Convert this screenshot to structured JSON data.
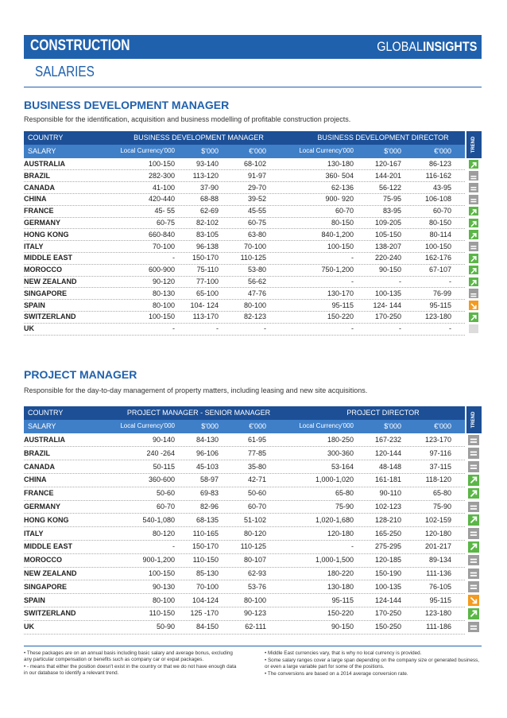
{
  "header": {
    "title": "CONSTRUCTION",
    "brand_light": "GLOBAL",
    "brand_bold": "INSIGHTS",
    "subtitle": "SALARIES"
  },
  "sections": [
    {
      "title": "BUSINESS DEVELOPMENT MANAGER",
      "description": "Responsible for the identification, acquisition and business modelling of profitable construction projects.",
      "country_label": "COUNTRY",
      "group1": "BUSINESS DEVELOPMENT MANAGER",
      "group2": "BUSINESS DEVELOPMENT DIRECTOR",
      "salary_label": "SALARY",
      "trend_label": "TREND",
      "currencies": [
        "Local Currency'000",
        "$'000",
        "€'000",
        "Local Currency'000",
        "$'000",
        "€'000"
      ],
      "rows": [
        {
          "country": "AUSTRALIA",
          "cells": [
            "100-150",
            "93-140",
            "68-102",
            "130-180",
            "120-167",
            "86-123"
          ],
          "trend": "up"
        },
        {
          "country": "BRAZIL",
          "cells": [
            "282-300",
            "113-120",
            "91-97",
            "360- 504",
            "144-201",
            "116-162"
          ],
          "trend": "flat"
        },
        {
          "country": "CANADA",
          "cells": [
            "41-100",
            "37-90",
            "29-70",
            "62-136",
            "56-122",
            "43-95"
          ],
          "trend": "flat"
        },
        {
          "country": "CHINA",
          "cells": [
            "420-440",
            "68-88",
            "39-52",
            "900- 920",
            "75-95",
            "106-108"
          ],
          "trend": "flat"
        },
        {
          "country": "FRANCE",
          "cells": [
            "45- 55",
            "62-69",
            "45-55",
            "60-70",
            "83-95",
            "60-70"
          ],
          "trend": "up"
        },
        {
          "country": "GERMANY",
          "cells": [
            "60-75",
            "82-102",
            "60-75",
            "80-150",
            "109-205",
            "80-150"
          ],
          "trend": "up"
        },
        {
          "country": "HONG KONG",
          "cells": [
            "660-840",
            "83-105",
            "63-80",
            "840-1,200",
            "105-150",
            "80-114"
          ],
          "trend": "up"
        },
        {
          "country": "ITALY",
          "cells": [
            "70-100",
            "96-138",
            "70-100",
            "100-150",
            "138-207",
            "100-150"
          ],
          "trend": "flat"
        },
        {
          "country": "MIDDLE EAST",
          "cells": [
            "-",
            "150-170",
            "110-125",
            "-",
            "220-240",
            "162-176"
          ],
          "trend": "up"
        },
        {
          "country": "MOROCCO",
          "cells": [
            "600-900",
            "75-110",
            "53-80",
            "750-1,200",
            "90-150",
            "67-107"
          ],
          "trend": "up"
        },
        {
          "country": "NEW ZEALAND",
          "cells": [
            "90-120",
            "77-100",
            "56-62",
            "-",
            "-",
            "-"
          ],
          "trend": "up"
        },
        {
          "country": "SINGAPORE",
          "cells": [
            "80-130",
            "65-100",
            "47-76",
            "130-170",
            "100-135",
            "76-99"
          ],
          "trend": "flat"
        },
        {
          "country": "SPAIN",
          "cells": [
            "80-100",
            "104- 124",
            "80-100",
            "95-115",
            "124- 144",
            "95-115"
          ],
          "trend": "down"
        },
        {
          "country": "SWITZERLAND",
          "cells": [
            "100-150",
            "113-170",
            "82-123",
            "150-220",
            "170-250",
            "123-180"
          ],
          "trend": "up"
        },
        {
          "country": "UK",
          "cells": [
            "-",
            "-",
            "-",
            "-",
            "-",
            "-"
          ],
          "trend": "none"
        }
      ]
    },
    {
      "title": "PROJECT MANAGER",
      "description": "Responsible for the day-to-day management of property matters, including leasing and new site acquisitions.",
      "country_label": "COUNTRY",
      "group1": "PROJECT MANAGER - SENIOR MANAGER",
      "group2": "PROJECT DIRECTOR",
      "salary_label": "SALARY",
      "trend_label": "TREND",
      "currencies": [
        "Local Currency'000",
        "$'000",
        "€'000",
        "Local Currency'000",
        "$'000",
        "€'000"
      ],
      "rows": [
        {
          "country": "AUSTRALIA",
          "cells": [
            "90-140",
            "84-130",
            "61-95",
            "180-250",
            "167-232",
            "123-170"
          ],
          "trend": "flat"
        },
        {
          "country": "BRAZIL",
          "cells": [
            "240 -264",
            "96-106",
            "77-85",
            "300-360",
            "120-144",
            "97-116"
          ],
          "trend": "flat"
        },
        {
          "country": "CANADA",
          "cells": [
            "50-115",
            "45-103",
            "35-80",
            "53-164",
            "48-148",
            "37-115"
          ],
          "trend": "flat"
        },
        {
          "country": "CHINA",
          "cells": [
            "360-600",
            "58-97",
            "42-71",
            "1,000-1,020",
            "161-181",
            "118-120"
          ],
          "trend": "up"
        },
        {
          "country": "FRANCE",
          "cells": [
            "50-60",
            "69-83",
            "50-60",
            "65-80",
            "90-110",
            "65-80"
          ],
          "trend": "up"
        },
        {
          "country": "GERMANY",
          "cells": [
            "60-70",
            "82-96",
            "60-70",
            "75-90",
            "102-123",
            "75-90"
          ],
          "trend": "flat"
        },
        {
          "country": "HONG KONG",
          "cells": [
            "540-1,080",
            "68-135",
            "51-102",
            "1,020-1,680",
            "128-210",
            "102-159"
          ],
          "trend": "up"
        },
        {
          "country": "ITALY",
          "cells": [
            "80-120",
            "110-165",
            "80-120",
            "120-180",
            "165-250",
            "120-180"
          ],
          "trend": "flat"
        },
        {
          "country": "MIDDLE EAST",
          "cells": [
            "-",
            "150-170",
            "110-125",
            "-",
            "275-295",
            "201-217"
          ],
          "trend": "up"
        },
        {
          "country": "MOROCCO",
          "cells": [
            "900-1,200",
            "110-150",
            "80-107",
            "1,000-1,500",
            "120-185",
            "89-134"
          ],
          "trend": "flat"
        },
        {
          "country": "NEW ZEALAND",
          "cells": [
            "100-150",
            "85-130",
            "62-93",
            "180-220",
            "150-190",
            "111-136"
          ],
          "trend": "flat"
        },
        {
          "country": "SINGAPORE",
          "cells": [
            "90-130",
            "70-100",
            "53-76",
            "130-180",
            "100-135",
            "76-105"
          ],
          "trend": "flat"
        },
        {
          "country": "SPAIN",
          "cells": [
            "80-100",
            "104-124",
            "80-100",
            "95-115",
            "124-144",
            "95-115"
          ],
          "trend": "down"
        },
        {
          "country": "SWITZERLAND",
          "cells": [
            "110-150",
            "125 -170",
            "90-123",
            "150-220",
            "170-250",
            "123-180"
          ],
          "trend": "up"
        },
        {
          "country": "UK",
          "cells": [
            "50-90",
            "84-150",
            "62-111",
            "90-150",
            "150-250",
            "111-186"
          ],
          "trend": "flat"
        }
      ]
    }
  ],
  "footnotes": {
    "left": [
      "These packages are on an annual basis including basic salary and average bonus, excluding any particular compensation or benefits such as company car or expat packages.",
      "- means that either the position doesn't exist in the country or that we do not have enough data in our database to identify a relevant trend."
    ],
    "right": [
      "Middle East currencies vary, that is why no local currency is provided.",
      "Some salary ranges cover a large span depending on the company size or generated business, or even a large variable part for some of the positions.",
      "The conversions are based on a 2014 average conversion rate."
    ]
  }
}
